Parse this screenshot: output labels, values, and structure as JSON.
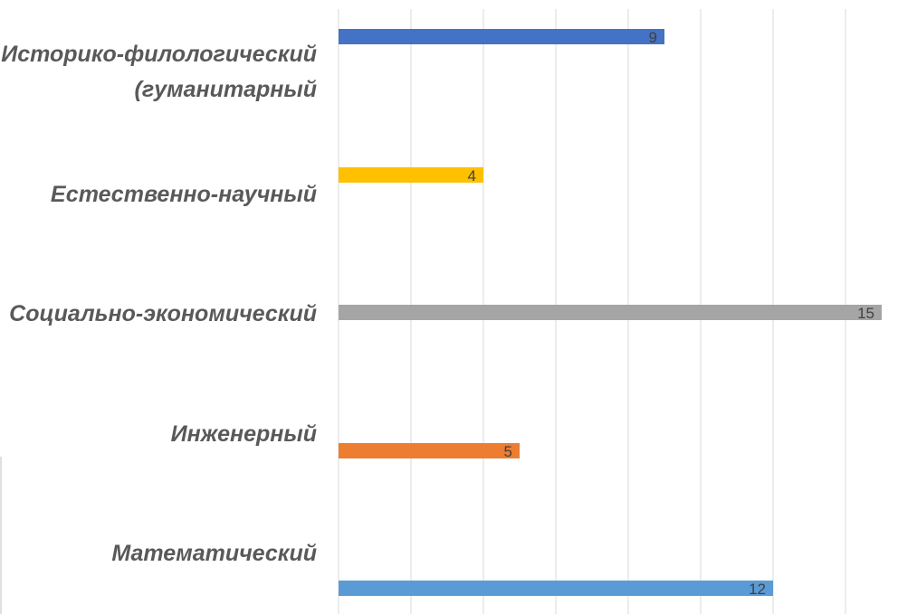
{
  "chart_data": {
    "type": "bar",
    "orientation": "horizontal",
    "title": "",
    "xlabel": "",
    "ylabel": "",
    "xlim": [
      0,
      15
    ],
    "grid": true,
    "legend": "none",
    "data_labels": true,
    "categories": [
      "Историко-филологический (гуманитарный",
      "Естественно-научный",
      "Социально-экономический",
      "Инженерный",
      "Математический"
    ],
    "category_lines": [
      [
        "Историко-филологический",
        "(гуманитарный"
      ],
      [
        "Естественно-научный"
      ],
      [
        "Социально-экономический"
      ],
      [
        "Инженерный"
      ],
      [
        "Математический"
      ]
    ],
    "values": [
      9,
      4,
      15,
      5,
      12
    ],
    "value_labels": [
      "9",
      "4",
      "15",
      "5",
      "12"
    ],
    "colors": [
      "#4472c4",
      "#ffc000",
      "#a5a5a5",
      "#ed7d31",
      "#5b9bd5"
    ]
  }
}
